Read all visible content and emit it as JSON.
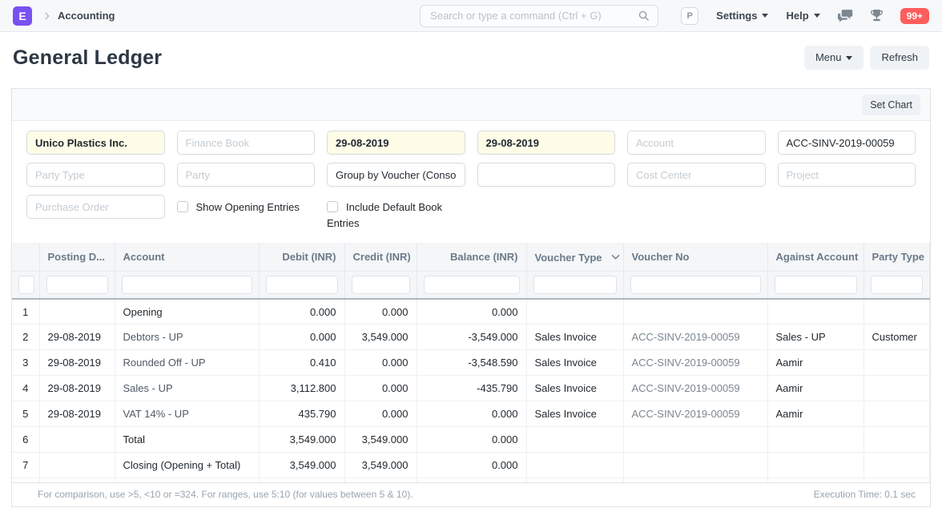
{
  "colors": {
    "accent": "#7950f2",
    "notification_badge": "#ff5d5d",
    "filled_filter_bg": "#fffce7"
  },
  "navbar": {
    "logo_letter": "E",
    "breadcrumb": "Accounting",
    "search": {
      "placeholder": "Search or type a command (Ctrl + G)"
    },
    "avatar_letter": "P",
    "settings_label": "Settings",
    "help_label": "Help",
    "notification_count": "99+"
  },
  "page": {
    "title": "General Ledger",
    "menu_button": "Menu",
    "refresh_button": "Refresh",
    "set_chart_button": "Set Chart"
  },
  "filters": {
    "company": {
      "value": "Unico Plastics Inc."
    },
    "finance_book": {
      "placeholder": "Finance Book"
    },
    "from_date": {
      "value": "29-08-2019"
    },
    "to_date": {
      "value": "29-08-2019"
    },
    "account": {
      "placeholder": "Account"
    },
    "voucher_no": {
      "value": "ACC-SINV-2019-00059"
    },
    "party_type": {
      "placeholder": "Party Type"
    },
    "party": {
      "placeholder": "Party"
    },
    "group_by": {
      "value": "Group by Voucher (Consol"
    },
    "cost_center": {
      "placeholder": "Cost Center"
    },
    "project": {
      "placeholder": "Project"
    },
    "purchase_order": {
      "placeholder": "Purchase Order"
    },
    "show_opening_entries_label": "Show Opening Entries",
    "include_default_book_entries_label": "Include Default Book Entries"
  },
  "table": {
    "columns": [
      {
        "label": ""
      },
      {
        "label": "Posting D..."
      },
      {
        "label": "Account"
      },
      {
        "label": "Debit (INR)",
        "align": "right"
      },
      {
        "label": "Credit (INR)",
        "align": "right"
      },
      {
        "label": "Balance (INR)",
        "align": "right"
      },
      {
        "label": "Voucher Type"
      },
      {
        "label": "Voucher No"
      },
      {
        "label": "Against Account"
      },
      {
        "label": "Party Type"
      }
    ],
    "rows": [
      {
        "idx": "1",
        "posting_date": "",
        "account": "Opening",
        "account_link": false,
        "debit": "0.000",
        "credit": "0.000",
        "balance": "0.000",
        "voucher_type": "",
        "voucher_no": "",
        "against_account": "",
        "party_type": ""
      },
      {
        "idx": "2",
        "posting_date": "29-08-2019",
        "account": "Debtors - UP",
        "account_link": true,
        "debit": "0.000",
        "credit": "3,549.000",
        "balance": "-3,549.000",
        "voucher_type": "Sales Invoice",
        "voucher_no": "ACC-SINV-2019-00059",
        "against_account": "Sales - UP",
        "party_type": "Customer"
      },
      {
        "idx": "3",
        "posting_date": "29-08-2019",
        "account": "Rounded Off - UP",
        "account_link": true,
        "debit": "0.410",
        "credit": "0.000",
        "balance": "-3,548.590",
        "voucher_type": "Sales Invoice",
        "voucher_no": "ACC-SINV-2019-00059",
        "against_account": "Aamir",
        "party_type": ""
      },
      {
        "idx": "4",
        "posting_date": "29-08-2019",
        "account": "Sales - UP",
        "account_link": true,
        "debit": "3,112.800",
        "credit": "0.000",
        "balance": "-435.790",
        "voucher_type": "Sales Invoice",
        "voucher_no": "ACC-SINV-2019-00059",
        "against_account": "Aamir",
        "party_type": ""
      },
      {
        "idx": "5",
        "posting_date": "29-08-2019",
        "account": "VAT 14% - UP",
        "account_link": true,
        "debit": "435.790",
        "credit": "0.000",
        "balance": "0.000",
        "voucher_type": "Sales Invoice",
        "voucher_no": "ACC-SINV-2019-00059",
        "against_account": "Aamir",
        "party_type": ""
      },
      {
        "idx": "6",
        "posting_date": "",
        "account": "Total",
        "account_link": false,
        "debit": "3,549.000",
        "credit": "3,549.000",
        "balance": "0.000",
        "voucher_type": "",
        "voucher_no": "",
        "against_account": "",
        "party_type": ""
      },
      {
        "idx": "7",
        "posting_date": "",
        "account": "Closing (Opening + Total)",
        "account_link": false,
        "debit": "3,549.000",
        "credit": "3,549.000",
        "balance": "0.000",
        "voucher_type": "",
        "voucher_no": "",
        "against_account": "",
        "party_type": ""
      }
    ]
  },
  "footer": {
    "hint": "For comparison, use >5, <10 or =324. For ranges, use 5:10 (for values between 5 & 10).",
    "execution_time": "Execution Time: 0.1 sec"
  }
}
